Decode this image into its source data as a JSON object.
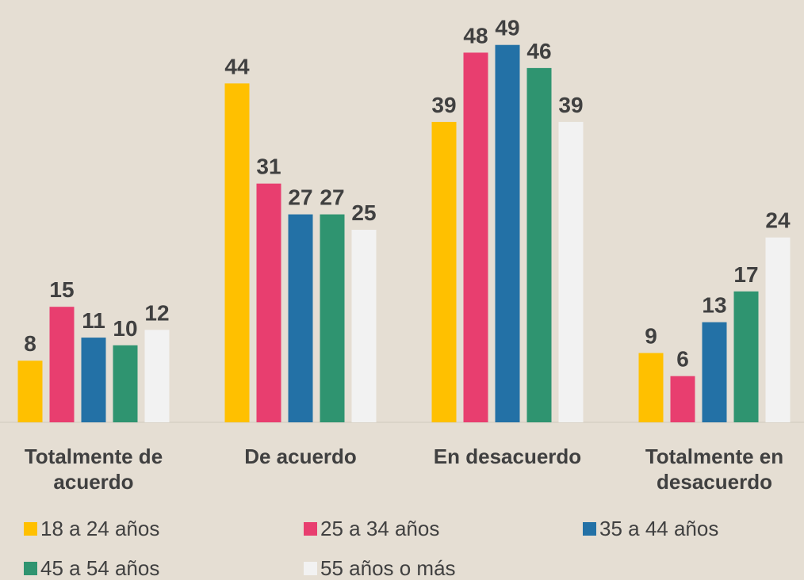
{
  "chart_data": {
    "type": "bar",
    "categories": [
      "Totalmente de acuerdo",
      "De acuerdo",
      "En desacuerdo",
      "Totalmente en desacuerdo"
    ],
    "series": [
      {
        "name": "18 a 24 años",
        "color": "#ffc000",
        "values": [
          8,
          44,
          39,
          9
        ]
      },
      {
        "name": "25 a 34 años",
        "color": "#e83e6f",
        "values": [
          15,
          31,
          48,
          6
        ]
      },
      {
        "name": "35 a 44 años",
        "color": "#2371a6",
        "values": [
          11,
          27,
          49,
          13
        ]
      },
      {
        "name": "45 a 54 años",
        "color": "#2f9470",
        "values": [
          10,
          27,
          46,
          17
        ]
      },
      {
        "name": "55 años o más",
        "color": "#f2f2f2",
        "values": [
          12,
          25,
          39,
          24
        ]
      }
    ],
    "ylim": [
      0,
      50
    ],
    "legend": "bottom"
  }
}
